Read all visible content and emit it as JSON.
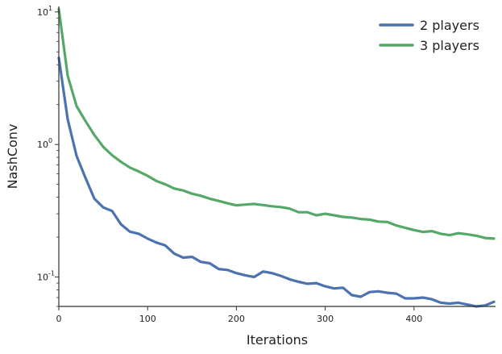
{
  "chart_data": {
    "type": "line",
    "title": "",
    "xlabel": "Iterations",
    "ylabel": "NashConv",
    "xlim": [
      0,
      490
    ],
    "ylim": [
      0.06,
      11
    ],
    "yscale": "log",
    "grid": false,
    "legend_position": "top-right",
    "x_ticks": [
      0,
      100,
      200,
      300,
      400
    ],
    "x_tick_labels": [
      "0",
      "100",
      "200",
      "300",
      "400"
    ],
    "y_ticks": [
      0.1,
      1,
      10
    ],
    "y_tick_base": "10",
    "y_tick_exponents": [
      "-1",
      "0",
      "1"
    ],
    "x": [
      0,
      10,
      20,
      30,
      40,
      50,
      60,
      70,
      80,
      90,
      100,
      110,
      120,
      130,
      140,
      150,
      160,
      170,
      180,
      190,
      200,
      210,
      220,
      230,
      240,
      250,
      260,
      270,
      280,
      290,
      300,
      310,
      320,
      330,
      340,
      350,
      360,
      370,
      380,
      390,
      400,
      410,
      420,
      430,
      440,
      450,
      460,
      470,
      480,
      490
    ],
    "series": [
      {
        "name": "2 players",
        "color": "#4c72b0",
        "values": [
          4.5,
          1.55,
          0.82,
          0.56,
          0.39,
          0.335,
          0.315,
          0.25,
          0.22,
          0.212,
          0.195,
          0.182,
          0.173,
          0.15,
          0.14,
          0.142,
          0.13,
          0.127,
          0.115,
          0.113,
          0.107,
          0.103,
          0.1,
          0.11,
          0.107,
          0.102,
          0.096,
          0.092,
          0.089,
          0.09,
          0.085,
          0.082,
          0.083,
          0.073,
          0.071,
          0.077,
          0.078,
          0.076,
          0.075,
          0.069,
          0.069,
          0.07,
          0.068,
          0.064,
          0.063,
          0.064,
          0.062,
          0.06,
          0.061,
          0.065
        ]
      },
      {
        "name": "3 players",
        "color": "#55a868",
        "values": [
          10.5,
          3.3,
          1.95,
          1.5,
          1.18,
          0.96,
          0.83,
          0.74,
          0.67,
          0.625,
          0.58,
          0.53,
          0.5,
          0.465,
          0.45,
          0.425,
          0.41,
          0.39,
          0.375,
          0.36,
          0.347,
          0.352,
          0.356,
          0.349,
          0.342,
          0.337,
          0.328,
          0.308,
          0.308,
          0.292,
          0.3,
          0.292,
          0.284,
          0.281,
          0.274,
          0.271,
          0.262,
          0.26,
          0.245,
          0.235,
          0.226,
          0.219,
          0.222,
          0.212,
          0.207,
          0.214,
          0.21,
          0.205,
          0.197,
          0.195
        ]
      }
    ]
  }
}
